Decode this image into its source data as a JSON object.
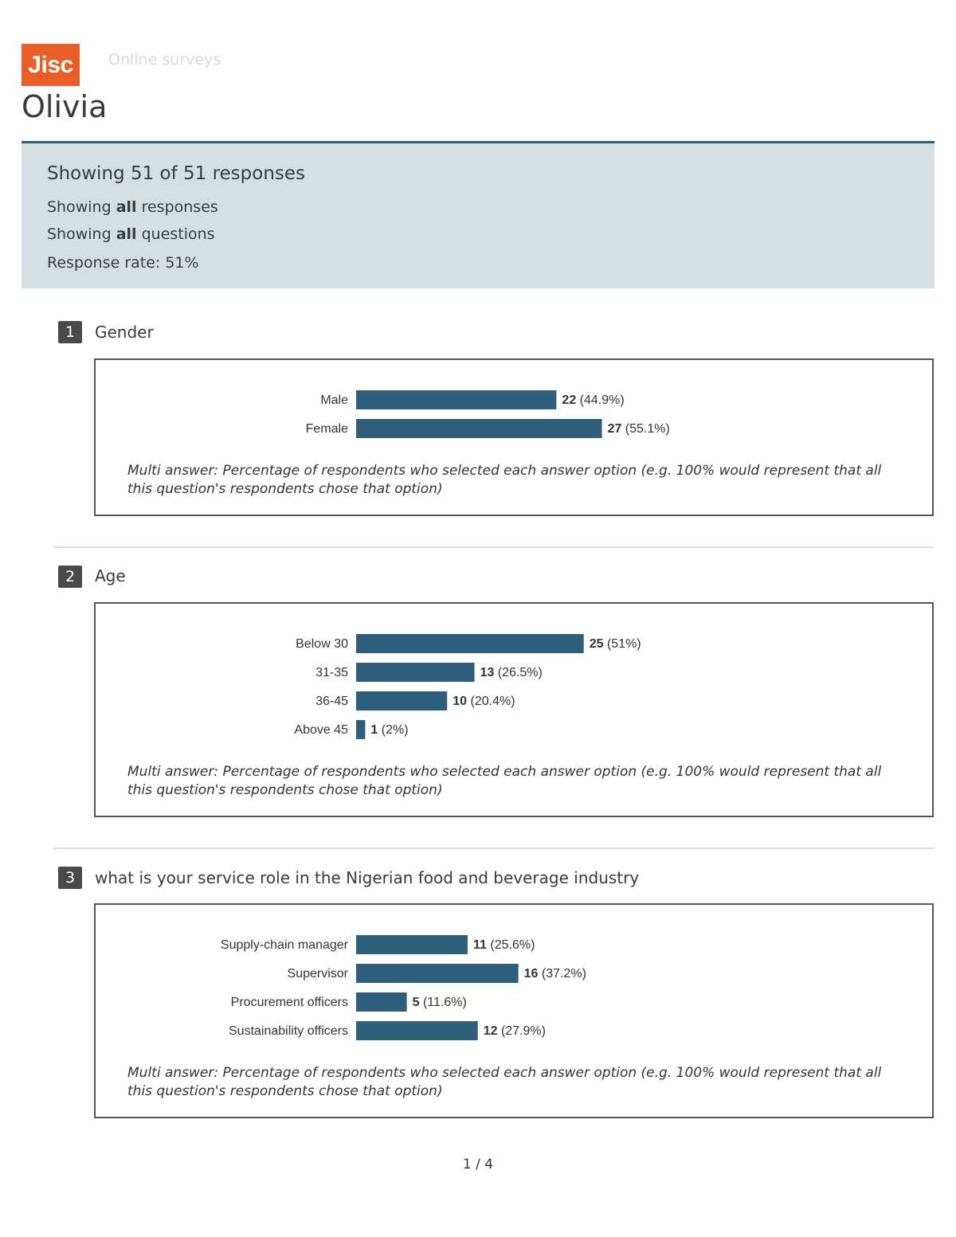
{
  "header": {
    "logo_text": "Jisc",
    "product": "Online surveys",
    "survey_title": "Olivia"
  },
  "summary": {
    "headline": "Showing 51 of 51 responses",
    "responses_prefix": "Showing ",
    "responses_bold": "all",
    "responses_suffix": " responses",
    "questions_prefix": "Showing ",
    "questions_bold": "all",
    "questions_suffix": " questions",
    "response_rate": "Response rate: 51%"
  },
  "note_text": "Multi answer: Percentage of respondents who selected each answer option (e.g. 100% would represent that all this question's respondents chose that option)",
  "page": "1 / 4",
  "colors": {
    "bar": "#2e5f7a",
    "logo": "#e85e26",
    "summary_bg": "#d5dfe1"
  },
  "chart_data": [
    {
      "type": "bar",
      "orientation": "horizontal",
      "question_number": "1",
      "question": "Gender",
      "categories": [
        "Male",
        "Female"
      ],
      "values": [
        22,
        27
      ],
      "percent_labels": [
        "(44.9%)",
        "(55.1%)"
      ]
    },
    {
      "type": "bar",
      "orientation": "horizontal",
      "question_number": "2",
      "question": "Age",
      "categories": [
        "Below 30",
        "31-35",
        "36-45",
        "Above 45"
      ],
      "values": [
        25,
        13,
        10,
        1
      ],
      "percent_labels": [
        "(51%)",
        "(26.5%)",
        "(20.4%)",
        "(2%)"
      ]
    },
    {
      "type": "bar",
      "orientation": "horizontal",
      "question_number": "3",
      "question": "what is your service role in the Nigerian food and beverage industry",
      "categories": [
        "Supply-chain manager",
        "Supervisor",
        "Procurement officers",
        "Sustainability officers"
      ],
      "values": [
        11,
        16,
        5,
        12
      ],
      "percent_labels": [
        "(25.6%)",
        "(37.2%)",
        "(11.6%)",
        "(27.9%)"
      ]
    }
  ]
}
